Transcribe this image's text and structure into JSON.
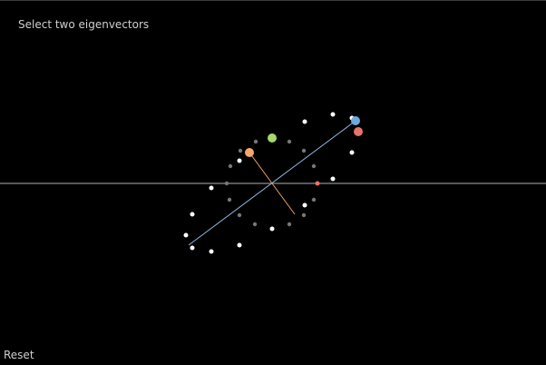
{
  "header": {
    "instruction": "Select two eigenvectors"
  },
  "controls": {
    "reset_label": "Reset"
  },
  "colors": {
    "background": "#000000",
    "axis_line": "#777777",
    "transformed_point": "#ffffff",
    "original_point": "#777777",
    "major_vector": "#8fb6dd",
    "minor_vector": "#f0a25c",
    "handle_blue": "#6fa8dc",
    "handle_red": "#e8736b",
    "handle_orange": "#f4a86a",
    "handle_green": "#a6d96a"
  },
  "icons": {
    "blue_handle": "circle-handle",
    "red_handle": "circle-handle",
    "orange_handle": "circle-handle",
    "green_handle": "circle-handle"
  }
}
